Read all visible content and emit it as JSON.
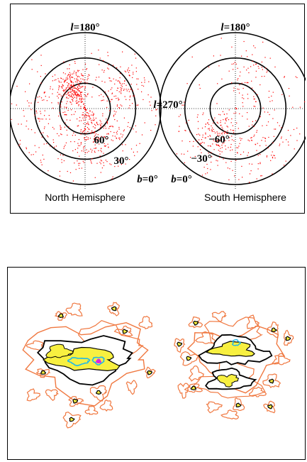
{
  "colors": {
    "points": "#ff0000",
    "circles": "#000000",
    "guides": "#000000",
    "contour_outer": "#f07840",
    "contour_dark": "#000000",
    "contour_light": "#ffffff",
    "contour_yellow": "#f8f040",
    "contour_cyan": "#20b8e8",
    "contour_magenta": "#e020e0"
  },
  "chart_data": [
    {
      "type": "scatter",
      "title": "",
      "projection": "polar (Galactic coordinates, two hemispheres)",
      "grid": true,
      "hemispheres": [
        {
          "name": "North Hemisphere",
          "b_circles": [
            0,
            30,
            60
          ],
          "labels": {
            "l_top": "=180°",
            "l_side": "=270°",
            "b60": "60°",
            "b30": "30°",
            "b0": "=0°"
          }
        },
        {
          "name": "South Hemisphere",
          "b_circles": [
            0,
            -30,
            -60
          ],
          "labels": {
            "l_top": "=180°",
            "b60": "−60°",
            "b30": "−30°",
            "b0": "=0°"
          }
        }
      ],
      "axis_symbols": {
        "l": "l",
        "b": "b"
      },
      "series": [
        {
          "clusters": [
            {
              "hemisphere": 0,
              "l": 30,
              "b": 60,
              "spread": 12,
              "n": 260
            },
            {
              "hemisphere": 0,
              "l": 200,
              "b": 50,
              "spread": 22,
              "n": 300
            },
            {
              "hemisphere": 0,
              "l": 300,
              "b": 35,
              "spread": 18,
              "n": 160
            },
            {
              "hemisphere": 0,
              "l": 90,
              "b": 40,
              "spread": 25,
              "n": 160
            },
            {
              "hemisphere": 1,
              "l": 220,
              "b": -45,
              "spread": 18,
              "n": 180
            },
            {
              "hemisphere": 1,
              "l": 150,
              "b": -30,
              "spread": 22,
              "n": 120
            },
            {
              "hemisphere": 1,
              "l": 30,
              "b": -40,
              "spread": 25,
              "n": 110
            }
          ]
        }
      ]
    },
    {
      "type": "heatmap",
      "title": "",
      "legend": false,
      "grid": false,
      "levels": [
        "contour_outer",
        "contour_dark",
        "contour_light",
        "contour_yellow",
        "contour_cyan",
        "contour_magenta"
      ]
    }
  ]
}
